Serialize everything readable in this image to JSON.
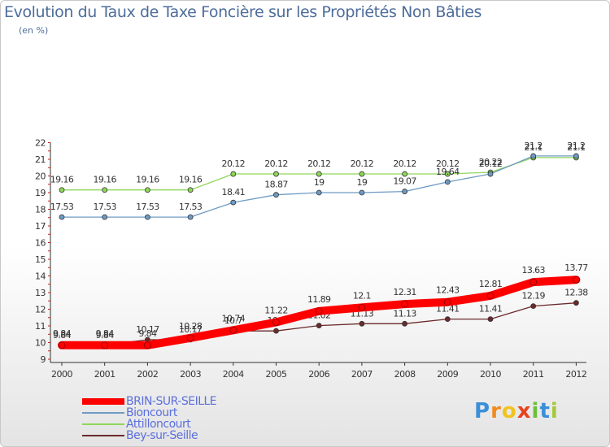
{
  "header": {
    "title": "Evolution du Taux de Taxe Foncière sur les Propriétés Non Bâties",
    "unit": "(en %)"
  },
  "brand": {
    "letters": [
      "P",
      "r",
      "o",
      "x",
      "i",
      "t",
      "i"
    ],
    "colors": [
      "#3a8fd8",
      "#f28a1e",
      "#f2c31e",
      "#e8431e",
      "#6cbf3a",
      "#3a8fd8",
      "#a6c83a"
    ]
  },
  "chart_data": {
    "type": "line",
    "x": [
      "2000",
      "2001",
      "2002",
      "2003",
      "2004",
      "2005",
      "2006",
      "2007",
      "2008",
      "2009",
      "2010",
      "2011",
      "2012"
    ],
    "ylim": [
      9,
      22
    ],
    "yticks": [
      "9",
      "10",
      "11",
      "12",
      "13",
      "14",
      "15",
      "16",
      "17",
      "18",
      "19",
      "20",
      "21",
      "22"
    ],
    "grid": false,
    "legend_position": "bottom-left",
    "series": [
      {
        "name": "Attilloncourt",
        "color": "#8fd65a",
        "values": [
          19.16,
          19.16,
          19.16,
          19.16,
          20.12,
          20.12,
          20.12,
          20.12,
          20.12,
          20.12,
          20.22,
          21.1,
          21.1
        ],
        "labels": [
          "19.16",
          "19.16",
          "19.16",
          "19.16",
          "20.12",
          "20.12",
          "20.12",
          "20.12",
          "20.12",
          "20.12",
          "20.22",
          "21.1",
          "21.1"
        ]
      },
      {
        "name": "Bioncourt",
        "color": "#6e9bc4",
        "values": [
          17.53,
          17.53,
          17.53,
          17.53,
          18.41,
          18.87,
          19,
          19,
          19.07,
          19.64,
          20.12,
          21.2,
          21.2
        ],
        "labels": [
          "17.53",
          "17.53",
          "17.53",
          "17.53",
          "18.41",
          "18.87",
          "19",
          "19",
          "19.07",
          "19.64",
          "20.12",
          "21.2",
          "21.2"
        ]
      },
      {
        "name": "Bey-sur-Seille",
        "color": "#6b2a2a",
        "values": [
          9.84,
          9.84,
          10.17,
          10.17,
          10.7,
          10.7,
          11.02,
          11.13,
          11.13,
          11.41,
          11.41,
          12.19,
          12.38
        ],
        "labels": [
          "9.84",
          "9.84",
          "10.17",
          "10.17",
          "10.7",
          "10.7",
          "11.02",
          "11.13",
          "11.13",
          "11.41",
          "11.41",
          "12.19",
          "12.38"
        ]
      },
      {
        "name": "BRIN-SUR-SEILLE",
        "color": "#ff0000",
        "values": [
          9.84,
          9.84,
          9.84,
          10.28,
          10.74,
          11.22,
          11.89,
          12.1,
          12.31,
          12.43,
          12.81,
          13.63,
          13.77
        ],
        "labels": [
          "9.84",
          "9.84",
          "9.84",
          "10.28",
          "10.74",
          "11.22",
          "11.89",
          "12.1",
          "12.31",
          "12.43",
          "12.81",
          "13.63",
          "13.77"
        ]
      }
    ],
    "legend": [
      {
        "name": "BRIN-SUR-SEILLE",
        "color": "#ff0000"
      },
      {
        "name": "Bioncourt",
        "color": "#6e9bc4"
      },
      {
        "name": "Attilloncourt",
        "color": "#8fd65a"
      },
      {
        "name": "Bey-sur-Seille",
        "color": "#6b2a2a"
      }
    ]
  }
}
